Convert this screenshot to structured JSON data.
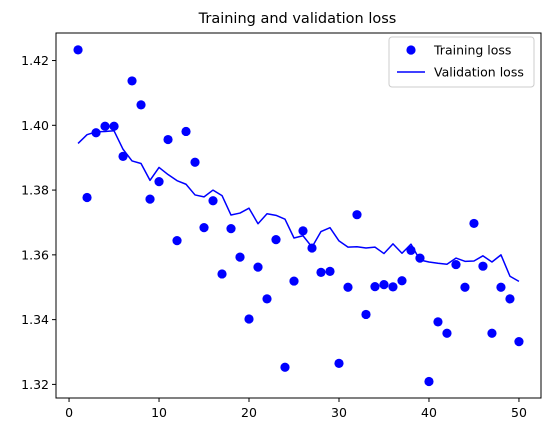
{
  "chart_data": {
    "type": "line",
    "title": "Training and validation loss",
    "xlabel": "",
    "ylabel": "",
    "xlim": [
      -1.45,
      52.45
    ],
    "ylim": [
      1.3158,
      1.4285
    ],
    "xticks": [
      0,
      10,
      20,
      30,
      40,
      50
    ],
    "yticks": [
      1.32,
      1.34,
      1.36,
      1.38,
      1.4,
      1.42
    ],
    "ytick_labels": [
      "1.32",
      "1.34",
      "1.36",
      "1.38",
      "1.40",
      "1.42"
    ],
    "grid": false,
    "legend_position": "top-right",
    "series": [
      {
        "name": "Training loss",
        "style": "markers",
        "color": "#0000ff",
        "x": [
          1,
          2,
          3,
          4,
          5,
          6,
          7,
          8,
          9,
          10,
          11,
          12,
          13,
          14,
          15,
          16,
          17,
          18,
          19,
          20,
          21,
          22,
          23,
          24,
          25,
          26,
          27,
          28,
          29,
          30,
          31,
          32,
          33,
          34,
          35,
          36,
          37,
          38,
          39,
          40,
          41,
          42,
          43,
          44,
          45,
          46,
          47,
          48,
          49,
          50
        ],
        "y": [
          1.4233,
          1.3777,
          1.3977,
          1.3997,
          1.3997,
          1.3904,
          1.4137,
          1.4063,
          1.3772,
          1.3826,
          1.3956,
          1.3644,
          1.3981,
          1.3886,
          1.3684,
          1.3767,
          1.3541,
          1.3681,
          1.3593,
          1.3402,
          1.3562,
          1.3464,
          1.3647,
          1.3253,
          1.3519,
          1.3674,
          1.3621,
          1.3546,
          1.3549,
          1.3265,
          1.35,
          1.3724,
          1.3416,
          1.3502,
          1.3508,
          1.3501,
          1.352,
          1.3614,
          1.359,
          1.3209,
          1.3393,
          1.3358,
          1.357,
          1.35,
          1.3697,
          1.3565,
          1.3358,
          1.35,
          1.3464,
          1.3332
        ]
      },
      {
        "name": "Validation loss",
        "style": "line",
        "color": "#0000ff",
        "x": [
          1,
          2,
          3,
          4,
          5,
          6,
          7,
          8,
          9,
          10,
          11,
          12,
          13,
          14,
          15,
          16,
          17,
          18,
          19,
          20,
          21,
          22,
          23,
          24,
          25,
          26,
          27,
          28,
          29,
          30,
          31,
          32,
          33,
          34,
          35,
          36,
          37,
          38,
          39,
          40,
          41,
          42,
          43,
          44,
          45,
          46,
          47,
          48,
          49,
          50
        ],
        "y": [
          1.3944,
          1.3971,
          1.398,
          1.3981,
          1.3983,
          1.3926,
          1.389,
          1.3882,
          1.383,
          1.387,
          1.3848,
          1.3829,
          1.3818,
          1.3785,
          1.3779,
          1.38,
          1.3783,
          1.3723,
          1.3729,
          1.3744,
          1.3696,
          1.3727,
          1.3722,
          1.371,
          1.3652,
          1.3659,
          1.3624,
          1.3672,
          1.3684,
          1.3643,
          1.3624,
          1.3625,
          1.3621,
          1.3624,
          1.3604,
          1.3634,
          1.3605,
          1.3633,
          1.3584,
          1.3578,
          1.3574,
          1.3571,
          1.359,
          1.358,
          1.3581,
          1.3597,
          1.3578,
          1.36,
          1.3534,
          1.3518
        ]
      }
    ]
  }
}
